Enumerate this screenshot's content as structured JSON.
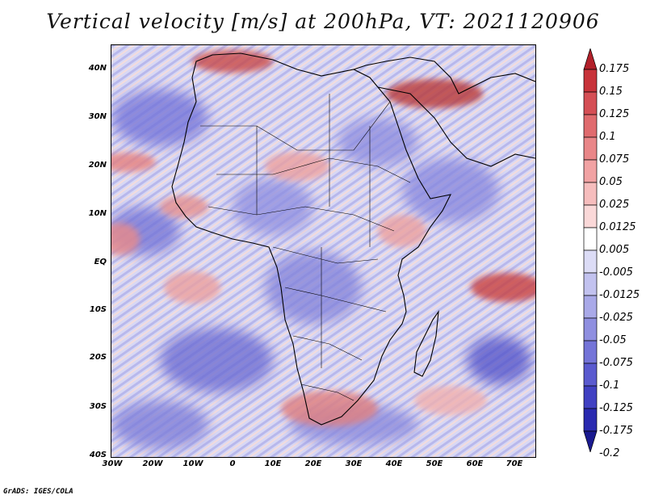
{
  "title": "Vertical velocity [m/s] at 200hPa, VT: 2021120906",
  "credit": "GrADS: IGES/COLA",
  "lat_labels": [
    "40N",
    "30N",
    "20N",
    "10N",
    "EQ",
    "10S",
    "20S",
    "30S",
    "40S"
  ],
  "lon_labels": [
    "30W",
    "20W",
    "10W",
    "0",
    "10E",
    "20E",
    "30E",
    "40E",
    "50E",
    "60E",
    "70E"
  ],
  "colorbar": {
    "labels": [
      "0.175",
      "0.15",
      "0.125",
      "0.1",
      "0.075",
      "0.05",
      "0.025",
      "0.0125",
      "0.005",
      "-0.005",
      "-0.0125",
      "-0.025",
      "-0.05",
      "-0.075",
      "-0.1",
      "-0.125",
      "-0.175",
      "-0.2"
    ],
    "colors": [
      "#b2202a",
      "#c8333a",
      "#d54f55",
      "#e06b6e",
      "#e98688",
      "#f1a2a3",
      "#f6bdbd",
      "#fad8d8",
      "#ffffff",
      "#dcdcf6",
      "#c2c2ef",
      "#a9a9e8",
      "#8f8fe0",
      "#7474d8",
      "#5a5acf",
      "#4040c2",
      "#2a2ab0",
      "#1a1a90"
    ]
  },
  "colors": {
    "positive": "#e07070",
    "negative": "#6a6ad8",
    "neutral": "#e6e6f6"
  }
}
